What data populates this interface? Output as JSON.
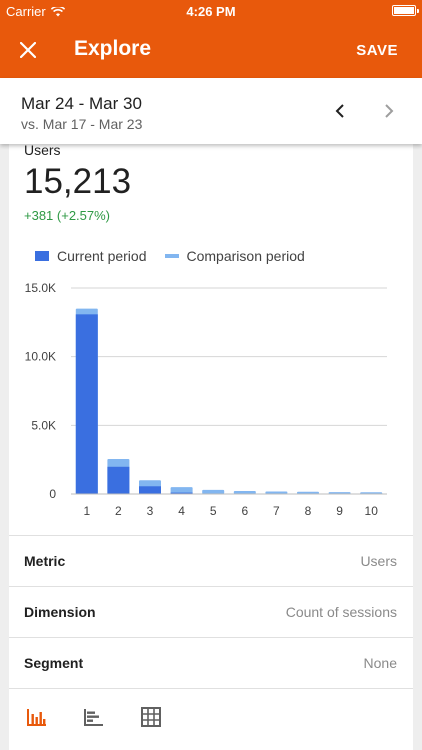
{
  "status_bar": {
    "carrier": "Carrier",
    "time": "4:26 PM"
  },
  "app_bar": {
    "title": "Explore",
    "save_label": "SAVE"
  },
  "date_range": {
    "current": "Mar 24 - Mar 30",
    "comparison": "vs. Mar 17 - Mar 23"
  },
  "metric": {
    "label": "Users",
    "value": "15,213",
    "change": "+381 (+2.57%)"
  },
  "legend": {
    "current": "Current period",
    "comparison": "Comparison period"
  },
  "colors": {
    "brand": "#e8590c",
    "current": "#3a6fe0",
    "comparison": "#82b6f0",
    "positive": "#2e9944"
  },
  "chart_data": {
    "type": "bar",
    "categories": [
      "1",
      "2",
      "3",
      "4",
      "5",
      "6",
      "7",
      "8",
      "9",
      "10"
    ],
    "series": [
      {
        "name": "Current period",
        "values": [
          13300,
          2200,
          780,
          320,
          160,
          100,
          75,
          55,
          45,
          40
        ]
      },
      {
        "name": "Comparison period",
        "values": [
          13500,
          2550,
          1000,
          500,
          300,
          220,
          180,
          160,
          140,
          130
        ]
      }
    ],
    "yticks": [
      "0",
      "5.0K",
      "10.0K",
      "15.0K"
    ],
    "ylim": [
      0,
      15000
    ],
    "grid": true
  },
  "settings": [
    {
      "label": "Metric",
      "value": "Users"
    },
    {
      "label": "Dimension",
      "value": "Count of sessions"
    },
    {
      "label": "Segment",
      "value": "None"
    }
  ],
  "tabs": [
    {
      "icon": "bar-chart-icon",
      "active": true
    },
    {
      "icon": "horizontal-bar-chart-icon",
      "active": false
    },
    {
      "icon": "table-icon",
      "active": false
    }
  ]
}
